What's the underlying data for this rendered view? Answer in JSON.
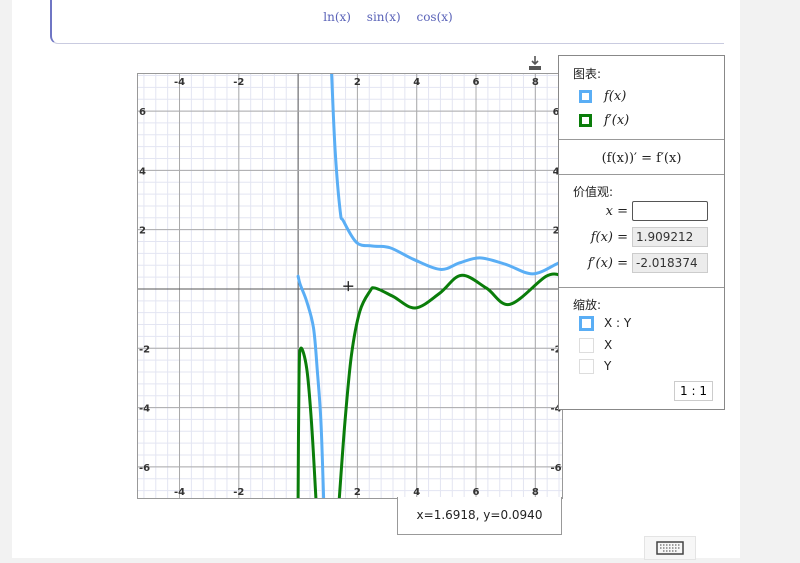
{
  "formula_bar": {
    "functions": [
      "ln(x)",
      "sin(x)",
      "cos(x)"
    ]
  },
  "panel": {
    "graphs_title": "图表:",
    "graphs": [
      {
        "label": "f(x)",
        "color": "#5aaef5",
        "checked": true
      },
      {
        "label": "f′(x)",
        "color": "#0a7d0a",
        "checked": true
      }
    ],
    "identity": "(f(x))′ = f′(x)",
    "values_title": "价值观:",
    "x_label": "x =",
    "x_value": "",
    "fx_label": "f(x) =",
    "fx_value": "1.909212",
    "dfx_label": "f′(x) =",
    "dfx_value": "-2.018374",
    "zoom_title": "缩放:",
    "zoom_options": [
      {
        "label": "X : Y",
        "checked": true
      },
      {
        "label": "X",
        "checked": false
      },
      {
        "label": "Y",
        "checked": false
      }
    ],
    "ratio_button": "1 : 1"
  },
  "cursor_readout": "x=1.6918, y=0.0940",
  "icons": {
    "download": "download-icon",
    "keyboard": "keyboard-icon"
  },
  "chart_data": {
    "type": "line",
    "xlim": [
      -5.4,
      8.9
    ],
    "ylim": [
      -7.05,
      7.25
    ],
    "grid": true,
    "x_ticks": [
      -4,
      -2,
      2,
      4,
      6,
      8
    ],
    "y_ticks": [
      -6,
      -4,
      -2,
      2,
      4,
      6
    ],
    "cursor": [
      1.6918,
      0.094
    ],
    "series": [
      {
        "name": "f(x)",
        "color": "#5aaef5",
        "branches": [
          [
            [
              0,
              0.43
            ],
            [
              0.07,
              0.15
            ],
            [
              0.29,
              -0.42
            ],
            [
              0.52,
              -1.32
            ],
            [
              0.65,
              -2.79
            ],
            [
              0.77,
              -4.48
            ],
            [
              0.86,
              -7.05
            ]
          ],
          [
            [
              1.13,
              7.25
            ],
            [
              1.25,
              4.65
            ],
            [
              1.42,
              2.62
            ],
            [
              1.53,
              2.29
            ],
            [
              1.98,
              1.56
            ],
            [
              2.5,
              1.45
            ],
            [
              3.1,
              1.39
            ],
            [
              3.89,
              1.0
            ],
            [
              4.8,
              0.66
            ],
            [
              5.45,
              0.88
            ],
            [
              6.13,
              1.05
            ],
            [
              7.0,
              0.83
            ],
            [
              7.9,
              0.51
            ],
            [
              8.69,
              0.83
            ],
            [
              8.9,
              0.95
            ]
          ]
        ]
      },
      {
        "name": "f′(x)",
        "color": "#0a7d0a",
        "branches": [
          [
            [
              0,
              -7.05
            ],
            [
              0.03,
              -3.0
            ],
            [
              0.09,
              -2.0
            ],
            [
              0.29,
              -2.68
            ],
            [
              0.45,
              -4.48
            ],
            [
              0.6,
              -7.05
            ]
          ],
          [
            [
              1.39,
              -7.05
            ],
            [
              1.58,
              -4.48
            ],
            [
              1.8,
              -2.22
            ],
            [
              2.08,
              -0.76
            ],
            [
              2.42,
              -0.08
            ],
            [
              2.6,
              0.03
            ],
            [
              3.2,
              -0.25
            ],
            [
              3.95,
              -0.64
            ],
            [
              4.78,
              -0.14
            ],
            [
              5.5,
              0.46
            ],
            [
              6.35,
              0.03
            ],
            [
              7.14,
              -0.52
            ],
            [
              8.37,
              0.43
            ],
            [
              8.9,
              0.45
            ]
          ]
        ]
      }
    ]
  }
}
